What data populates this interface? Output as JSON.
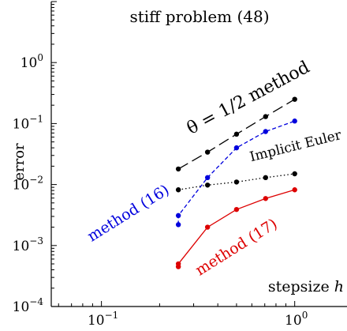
{
  "chart_data": {
    "type": "line",
    "title": "stiff problem (48)",
    "xlabel": "stepsize h",
    "ylabel": "error",
    "xscale": "log",
    "yscale": "log",
    "xlim": [
      0.055,
      1.9
    ],
    "ylim": [
      0.0001,
      10
    ],
    "grid": false,
    "x_ticks": [
      {
        "value": 0.1,
        "base": "10",
        "exp": "−1"
      },
      {
        "value": 1,
        "base": "10",
        "exp": "0"
      }
    ],
    "y_ticks": [
      {
        "value": 0.0001,
        "base": "10",
        "exp": "−4"
      },
      {
        "value": 0.001,
        "base": "10",
        "exp": "−3"
      },
      {
        "value": 0.01,
        "base": "10",
        "exp": "−2"
      },
      {
        "value": 0.1,
        "base": "10",
        "exp": "−1"
      },
      {
        "value": 1,
        "base": "10",
        "exp": "0"
      }
    ],
    "series": [
      {
        "name": "θ = 1/2 method",
        "color": "#000000",
        "dash": "long-dash",
        "x": [
          0.25,
          0.354,
          0.5,
          0.707,
          1.0
        ],
        "y": [
          0.018,
          0.034,
          0.067,
          0.13,
          0.25
        ]
      },
      {
        "name": "Implicit Euler",
        "color": "#000000",
        "dash": "dotted",
        "x": [
          0.25,
          0.354,
          0.5,
          0.707,
          1.0
        ],
        "y": [
          0.0082,
          0.0098,
          0.011,
          0.013,
          0.015
        ]
      },
      {
        "name": "method (16)",
        "color": "#0000dd",
        "dash": "dashed",
        "x": [
          0.25,
          0.25,
          0.354,
          0.5,
          0.707,
          1.0
        ],
        "y": [
          0.0022,
          0.0031,
          0.013,
          0.04,
          0.074,
          0.11
        ]
      },
      {
        "name": "method (17)",
        "color": "#dd0000",
        "dash": "solid",
        "x": [
          0.25,
          0.25,
          0.354,
          0.5,
          0.707,
          1.0
        ],
        "y": [
          0.00045,
          0.0005,
          0.002,
          0.0039,
          0.0059,
          0.0082
        ]
      }
    ],
    "annotations": [
      {
        "text": "θ = 1/2 method",
        "color": "#000000"
      },
      {
        "text": "Implicit Euler",
        "color": "#000000"
      },
      {
        "text": "method (16)",
        "color": "#0000dd"
      },
      {
        "text": "method (17)",
        "color": "#dd0000"
      }
    ]
  }
}
